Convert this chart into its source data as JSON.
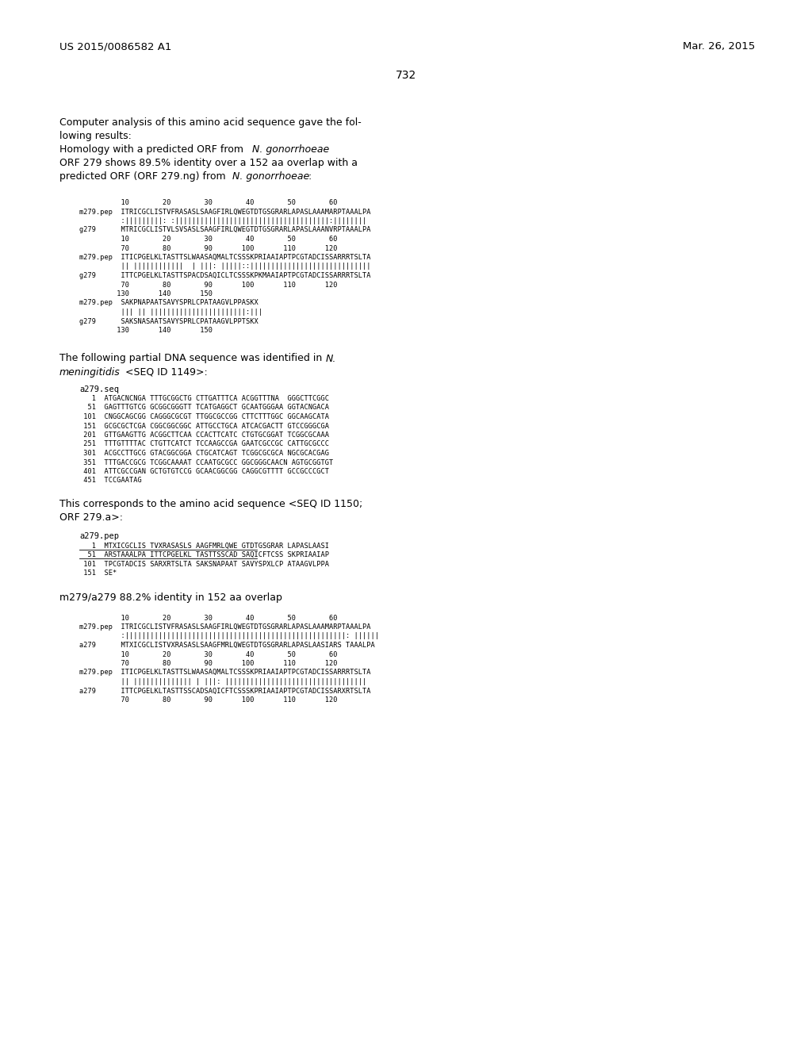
{
  "page_num": "732",
  "patent_left": "US 2015/0086582 A1",
  "patent_right": "Mar. 26, 2015",
  "background_color": "#ffffff",
  "text_color": "#000000",
  "body_lines": [
    [
      "Computer analysis of this amino acid sequence gave the fol-",
      "normal"
    ],
    [
      "lowing results:",
      "normal"
    ],
    [
      "Homology with a predicted ORF from ",
      "normal"
    ],
    [
      "ORF 279 shows 89.5% identity over a 152 aa overlap with a",
      "normal"
    ],
    [
      "predicted ORF (ORF 279.ng) from ",
      "normal"
    ]
  ],
  "align1_numbers1": "          10        20        30        40        50        60",
  "align1_m1": "m279.pep  ITRICGCLISTVFRASASLSAAGFIRLQWEGTDTGSGRARLAPASLAAAMARPTAAALPA",
  "align1_bar1": "          :|||||||||: :|||||||||||||||||||||||||||||||||||||:||||||||",
  "align1_g1": "g279      MTRICGCLISTVLSVSASLSAAGFIRLQWEGTDTGSGRARLAPASLAAANVRPTAAALPA",
  "align1_numbers1b": "          10        20        30        40        50        60",
  "align1_numbers2": "          70        80        90       100       110       120",
  "align1_m2": "m279.pep  ITICPGELKLTASTTSLWAASAQMALTCSSSKPRIAAIAPTPCGTADCISSARRRTSLTA",
  "align1_bar2": "          || ||||||||||||  | |||: |||||::|||||||||||||||||||||||||||||",
  "align1_g2": "g279      ITTCPGELKLTASTTSPACDSAQICLTCSSSKPKMAAIAPTPCGTADCISSARRRTSLTA",
  "align1_numbers2b": "          70        80        90       100       110       120",
  "align1_numbers3": "         130       140       150",
  "align1_m3": "m279.pep  SAKPNAPAATSAVYSPRLCPATAAGVLPPASKX",
  "align1_bar3": "          ||| || |||||||||||||||||||||||:|||",
  "align1_g3": "g279      SAKSNASAATSAVYSPRLCPATAAGVLPPTSKX",
  "align1_numbers3b": "         130       140       150",
  "para2_line1_pre": "The following partial DNA sequence was identified in ",
  "para2_line1_ital": "N.",
  "para2_line2_ital": "meningitidis",
  "para2_line2_rest": " <SEQ ID 1149>:",
  "dna_seq_label": "a279.seq",
  "dna_seq": [
    "   1  ATGACNCNGA TTTGCGGCTG CTTGATTTCA ACGGTTTNA  GGGCTTCGGC",
    "  51  GAGTTTGTCG GCGGCGGGTT TCATGAGGCT GCAATGGGAA GGTACNGACA",
    " 101  CNGGCAGCGG CAGGGCGCGT TTGGCGCCGG CTTCTTTGGC GGCAAGCATA",
    " 151  GCGCGCTCGA CGGCGGCGGC ATTGCCTGCA ATCACGACTT GTCCGGGCGA",
    " 201  GTTGAAGTTG ACGGCTTCAA CCACTTCATC CTGTGCGGAT TCGGCGCAAA",
    " 251  TTTGTTTTAC CTGTTCATCT TCCAAGCCGA GAATCGCCGC CATTGCGCCC",
    " 301  ACGCCTTGCG GTACGGCGGA CTGCATCAGT TCGGCGCGCA NGCGCACGAG",
    " 351  TTTGACCGCG TCGGCAAAAT CCAATGCGCC GGCGGGCAACN AGTGCGGTGT",
    " 401  ATTCGCCGAN GCTGTGTCCG GCAACGGCGG CAGGCGTTTT GCCGCCCGCT",
    " 451  TCCGAATAG"
  ],
  "para3_text1": "This corresponds to the amino acid sequence <SEQ ID 1150;",
  "para3_text2": "ORF 279.a>:",
  "aa_seq_label": "a279.pep",
  "aa_seq": [
    "   1  MTXICGCLIS TVXRASASLS AAGFMRLQWE GTDTGSGRAR LAPASLAASI",
    "  51  ARSTAAALPA ITTCPGELKL TASTTSSCAD SAQICFTCSS SKPRIAAIAP",
    " 101  TPCGTADCIS SARXRTSLTA SAKSNAPAAT SAVYSPXLCP ATAAGVLPPA",
    " 151  SE*"
  ],
  "para4_text": "m279/a279 88.2% identity in 152 aa overlap",
  "align2_numbers1": "          10        20        30        40        50        60",
  "align2_m1": "m279.pep  ITRICGCLISTVFRASASLSAAGFIRLQWEGTDTGSGRARLAPASLAAAMARPTAAALPA",
  "align2_bar1": "          :|||||||||||||||||||||||||||||||||||||||||||||||||||||: ||||||",
  "align2_a1": "a279      MTXICGCLISTVXRASASLSAAGFMRLQWEGTDTGSGRARLAPASLAASIARS TAAALPA",
  "align2_numbers1b": "          10        20        30        40        50        60",
  "align2_numbers2": "          70        80        90       100       110       120",
  "align2_m2": "m279.pep  ITICPGELKLTASTTSLWAASAQMALTCSSSKPRIAAIAPTPCGTADCISSARRRTSLTA",
  "align2_bar2": "          || |||||||||||||| | |||: ||||||||||||||||||||||||||||||||||",
  "align2_a2": "a279      ITTCPGELKLTASTTSSCADSAQICFTCSSSKPRIAAIAPTPCGTADCISSARXRTSLTA",
  "align2_numbers2b": "          70        80        90       100       110       120"
}
